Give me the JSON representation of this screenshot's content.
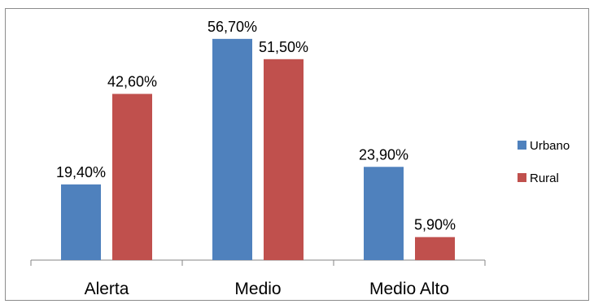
{
  "chart_data": {
    "type": "bar",
    "categories": [
      "Alerta",
      "Medio",
      "Medio Alto"
    ],
    "series": [
      {
        "name": "Urbano",
        "color": "#4f81bd",
        "values": [
          19.4,
          56.7,
          23.9
        ],
        "labels": [
          "19,40%",
          "56,70%",
          "23,90%"
        ]
      },
      {
        "name": "Rural",
        "color": "#c0504d",
        "values": [
          42.6,
          51.5,
          5.9
        ],
        "labels": [
          "42,60%",
          "51,50%",
          "5,90%"
        ]
      }
    ],
    "ylim": [
      0,
      60
    ],
    "grid": false,
    "legend_position": "right"
  }
}
